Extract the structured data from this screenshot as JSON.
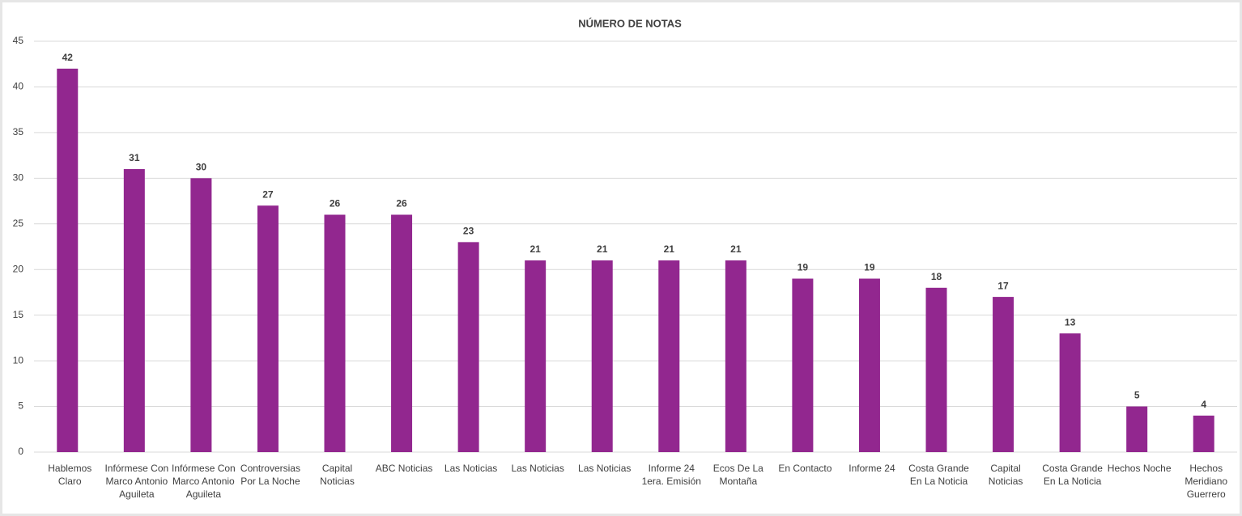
{
  "chart_data": {
    "type": "bar",
    "title": "NÚMERO DE NOTAS",
    "categories": [
      "Hablemos Claro",
      "Infórmese Con Marco Antonio Aguileta",
      "Infórmese Con Marco Antonio Aguileta",
      "Controversias Por La Noche",
      "Capital Noticias",
      "ABC Noticias",
      "Las Noticias",
      "Las Noticias",
      "Las Noticias",
      "Informe 24 1era. Emisión",
      "Ecos De La Montaña",
      "En Contacto",
      "Informe 24",
      "Costa Grande En La Noticia",
      "Capital Noticias",
      "Costa Grande En La Noticia",
      "Hechos Noche",
      "Hechos Meridiano Guerrero"
    ],
    "values": [
      42,
      31,
      30,
      27,
      26,
      26,
      23,
      21,
      21,
      21,
      21,
      19,
      19,
      18,
      17,
      13,
      5,
      4
    ],
    "color": "#92278f",
    "ylim": [
      0,
      45
    ],
    "yticks": [
      0,
      5,
      10,
      15,
      20,
      25,
      30,
      35,
      40,
      45
    ],
    "grid": true
  }
}
